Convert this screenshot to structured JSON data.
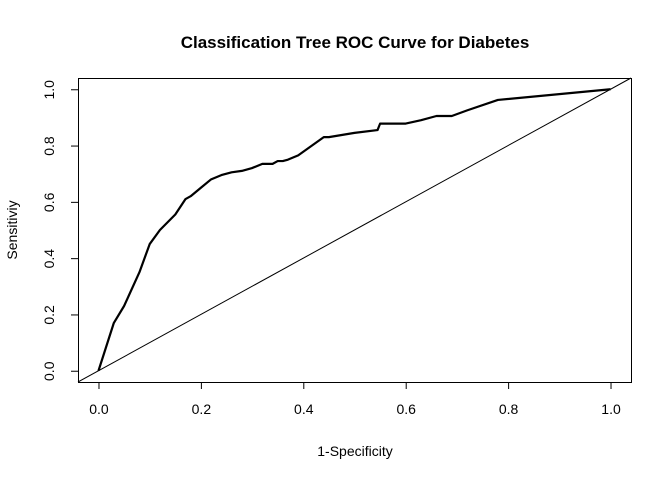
{
  "chart_data": {
    "type": "line",
    "title": "Classification Tree ROC Curve for Diabetes",
    "xlabel": "1-Specificity",
    "ylabel": "Sensitiviy",
    "xlim": [
      -0.04,
      1.04
    ],
    "ylim": [
      -0.04,
      1.04
    ],
    "xticks": [
      0.0,
      0.2,
      0.4,
      0.6,
      0.8,
      1.0
    ],
    "yticks": [
      0.0,
      0.2,
      0.4,
      0.6,
      0.8,
      1.0
    ],
    "xtick_labels": [
      "0.0",
      "0.2",
      "0.4",
      "0.6",
      "0.8",
      "1.0"
    ],
    "ytick_labels": [
      "0.0",
      "0.2",
      "0.4",
      "0.6",
      "0.8",
      "1.0"
    ],
    "grid": false,
    "series": [
      {
        "line_color": "#000000",
        "x": [
          0.0,
          0.03,
          0.05,
          0.08,
          0.1,
          0.12,
          0.15,
          0.17,
          0.18,
          0.2,
          0.22,
          0.24,
          0.25,
          0.26,
          0.28,
          0.3,
          0.32,
          0.34,
          0.35,
          0.36,
          0.37,
          0.39,
          0.44,
          0.45,
          0.5,
          0.545,
          0.55,
          0.6,
          0.63,
          0.66,
          0.69,
          0.72,
          0.78,
          1.0
        ],
        "y": [
          0.0,
          0.17,
          0.23,
          0.35,
          0.45,
          0.5,
          0.555,
          0.61,
          0.62,
          0.65,
          0.68,
          0.695,
          0.7,
          0.705,
          0.71,
          0.72,
          0.735,
          0.735,
          0.745,
          0.745,
          0.75,
          0.765,
          0.83,
          0.83,
          0.845,
          0.855,
          0.878,
          0.878,
          0.89,
          0.905,
          0.905,
          0.925,
          0.962,
          1.0
        ]
      },
      {
        "line_color": "#000000",
        "x": [
          -0.04,
          1.04
        ],
        "y": [
          -0.04,
          1.04
        ]
      }
    ]
  }
}
